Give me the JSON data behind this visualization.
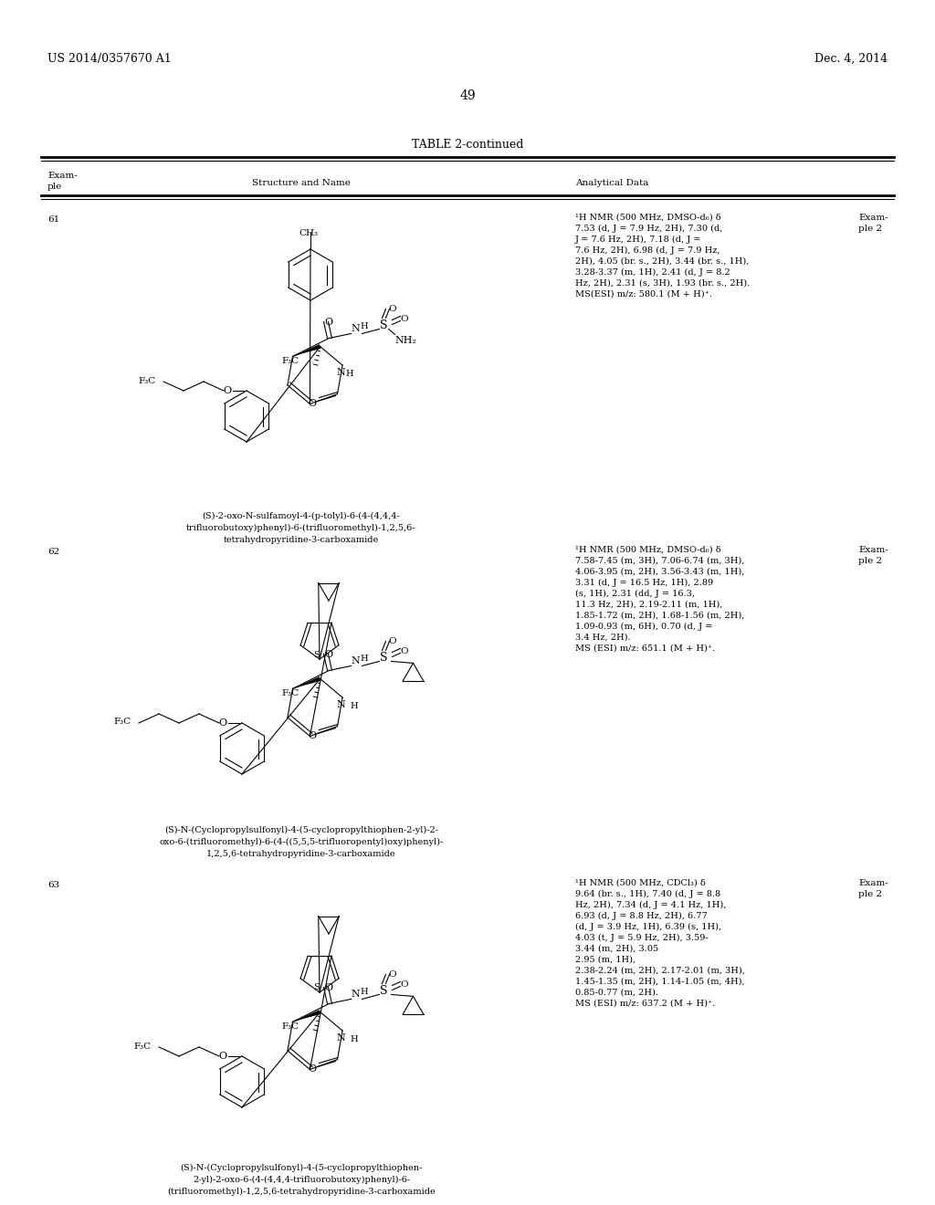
{
  "background_color": "#ffffff",
  "page_number": "49",
  "header_left": "US 2014/0357670 A1",
  "header_right": "Dec. 4, 2014",
  "table_title": "TABLE 2-continued",
  "font_size_header": 9,
  "font_size_body": 7.5,
  "font_size_title": 9,
  "font_size_page": 10,
  "entries": [
    {
      "example_num": "61",
      "example_ref_line1": "Exam-",
      "example_ref_line2": "ple 2",
      "name_lines": [
        "(S)-2-oxo-N-sulfamoyl-4-(p-tolyl)-6-(4-(4,4,4-",
        "trifluorobutoxy)phenyl)-6-(trifluoromethyl)-1,2,5,6-",
        "tetrahydropyridine-3-carboxamide"
      ],
      "nmr_lines": [
        "¹H NMR (500 MHz, DMSO-d₆) δ",
        "7.53 (d, J = 7.9 Hz, 2H), 7.30 (d,",
        "J = 7.6 Hz, 2H), 7.18 (d, J =",
        "7.6 Hz, 2H), 6.98 (d, J = 7.9 Hz,",
        "2H), 4.05 (br. s., 2H), 3.44 (br. s., 1H),",
        "3.28-3.37 (m, 1H), 2.41 (d, J = 8.2",
        "Hz, 2H), 2.31 (s, 3H), 1.93 (br. s., 2H).",
        "MS(ESI) m/z: 580.1 (M + H)⁺."
      ]
    },
    {
      "example_num": "62",
      "example_ref_line1": "Exam-",
      "example_ref_line2": "ple 2",
      "name_lines": [
        "(S)-N-(Cyclopropylsulfonyl)-4-(5-cyclopropylthiophen-2-yl)-2-",
        "oxo-6-(trifluoromethyl)-6-(4-((5,5,5-trifluoropentyl)oxy)phenyl)-",
        "1,2,5,6-tetrahydropyridine-3-carboxamide"
      ],
      "nmr_lines": [
        "¹H NMR (500 MHz, DMSO-d₆) δ",
        "7.58-7.45 (m, 3H), 7.06-6.74 (m, 3H),",
        "4.06-3.95 (m, 2H), 3.56-3.43 (m, 1H),",
        "3.31 (d, J = 16.5 Hz, 1H), 2.89",
        "(s, 1H), 2.31 (dd, J = 16.3,",
        "11.3 Hz, 2H), 2.19-2.11 (m, 1H),",
        "1.85-1.72 (m, 2H), 1.68-1.56 (m, 2H),",
        "1.09-0.93 (m, 6H), 0.70 (d, J =",
        "3.4 Hz, 2H).",
        "MS (ESI) m/z: 651.1 (M + H)⁺."
      ]
    },
    {
      "example_num": "63",
      "example_ref_line1": "Exam-",
      "example_ref_line2": "ple 2",
      "name_lines": [
        "(S)-N-(Cyclopropylsulfonyl)-4-(5-cyclopropylthiophen-",
        "2-yl)-2-oxo-6-(4-(4,4,4-trifluorobutoxy)phenyl)-6-",
        "(trifluoromethyl)-1,2,5,6-tetrahydropyridine-3-carboxamide"
      ],
      "nmr_lines": [
        "¹H NMR (500 MHz, CDCl₃) δ",
        "9.64 (br. s., 1H), 7.40 (d, J = 8.8",
        "Hz, 2H), 7.34 (d, J = 4.1 Hz, 1H),",
        "6.93 (d, J = 8.8 Hz, 2H), 6.77",
        "(d, J = 3.9 Hz, 1H), 6.39 (s, 1H),",
        "4.03 (t, J = 5.9 Hz, 2H), 3.59-",
        "3.44 (m, 2H), 3.05",
        "2.95 (m, 1H),",
        "2.38-2.24 (m, 2H), 2.17-2.01 (m, 3H),",
        "1.45-1.35 (m, 2H), 1.14-1.05 (m, 4H),",
        "0.85-0.77 (m, 2H).",
        "MS (ESI) m/z: 637.2 (M + H)⁺."
      ]
    }
  ]
}
